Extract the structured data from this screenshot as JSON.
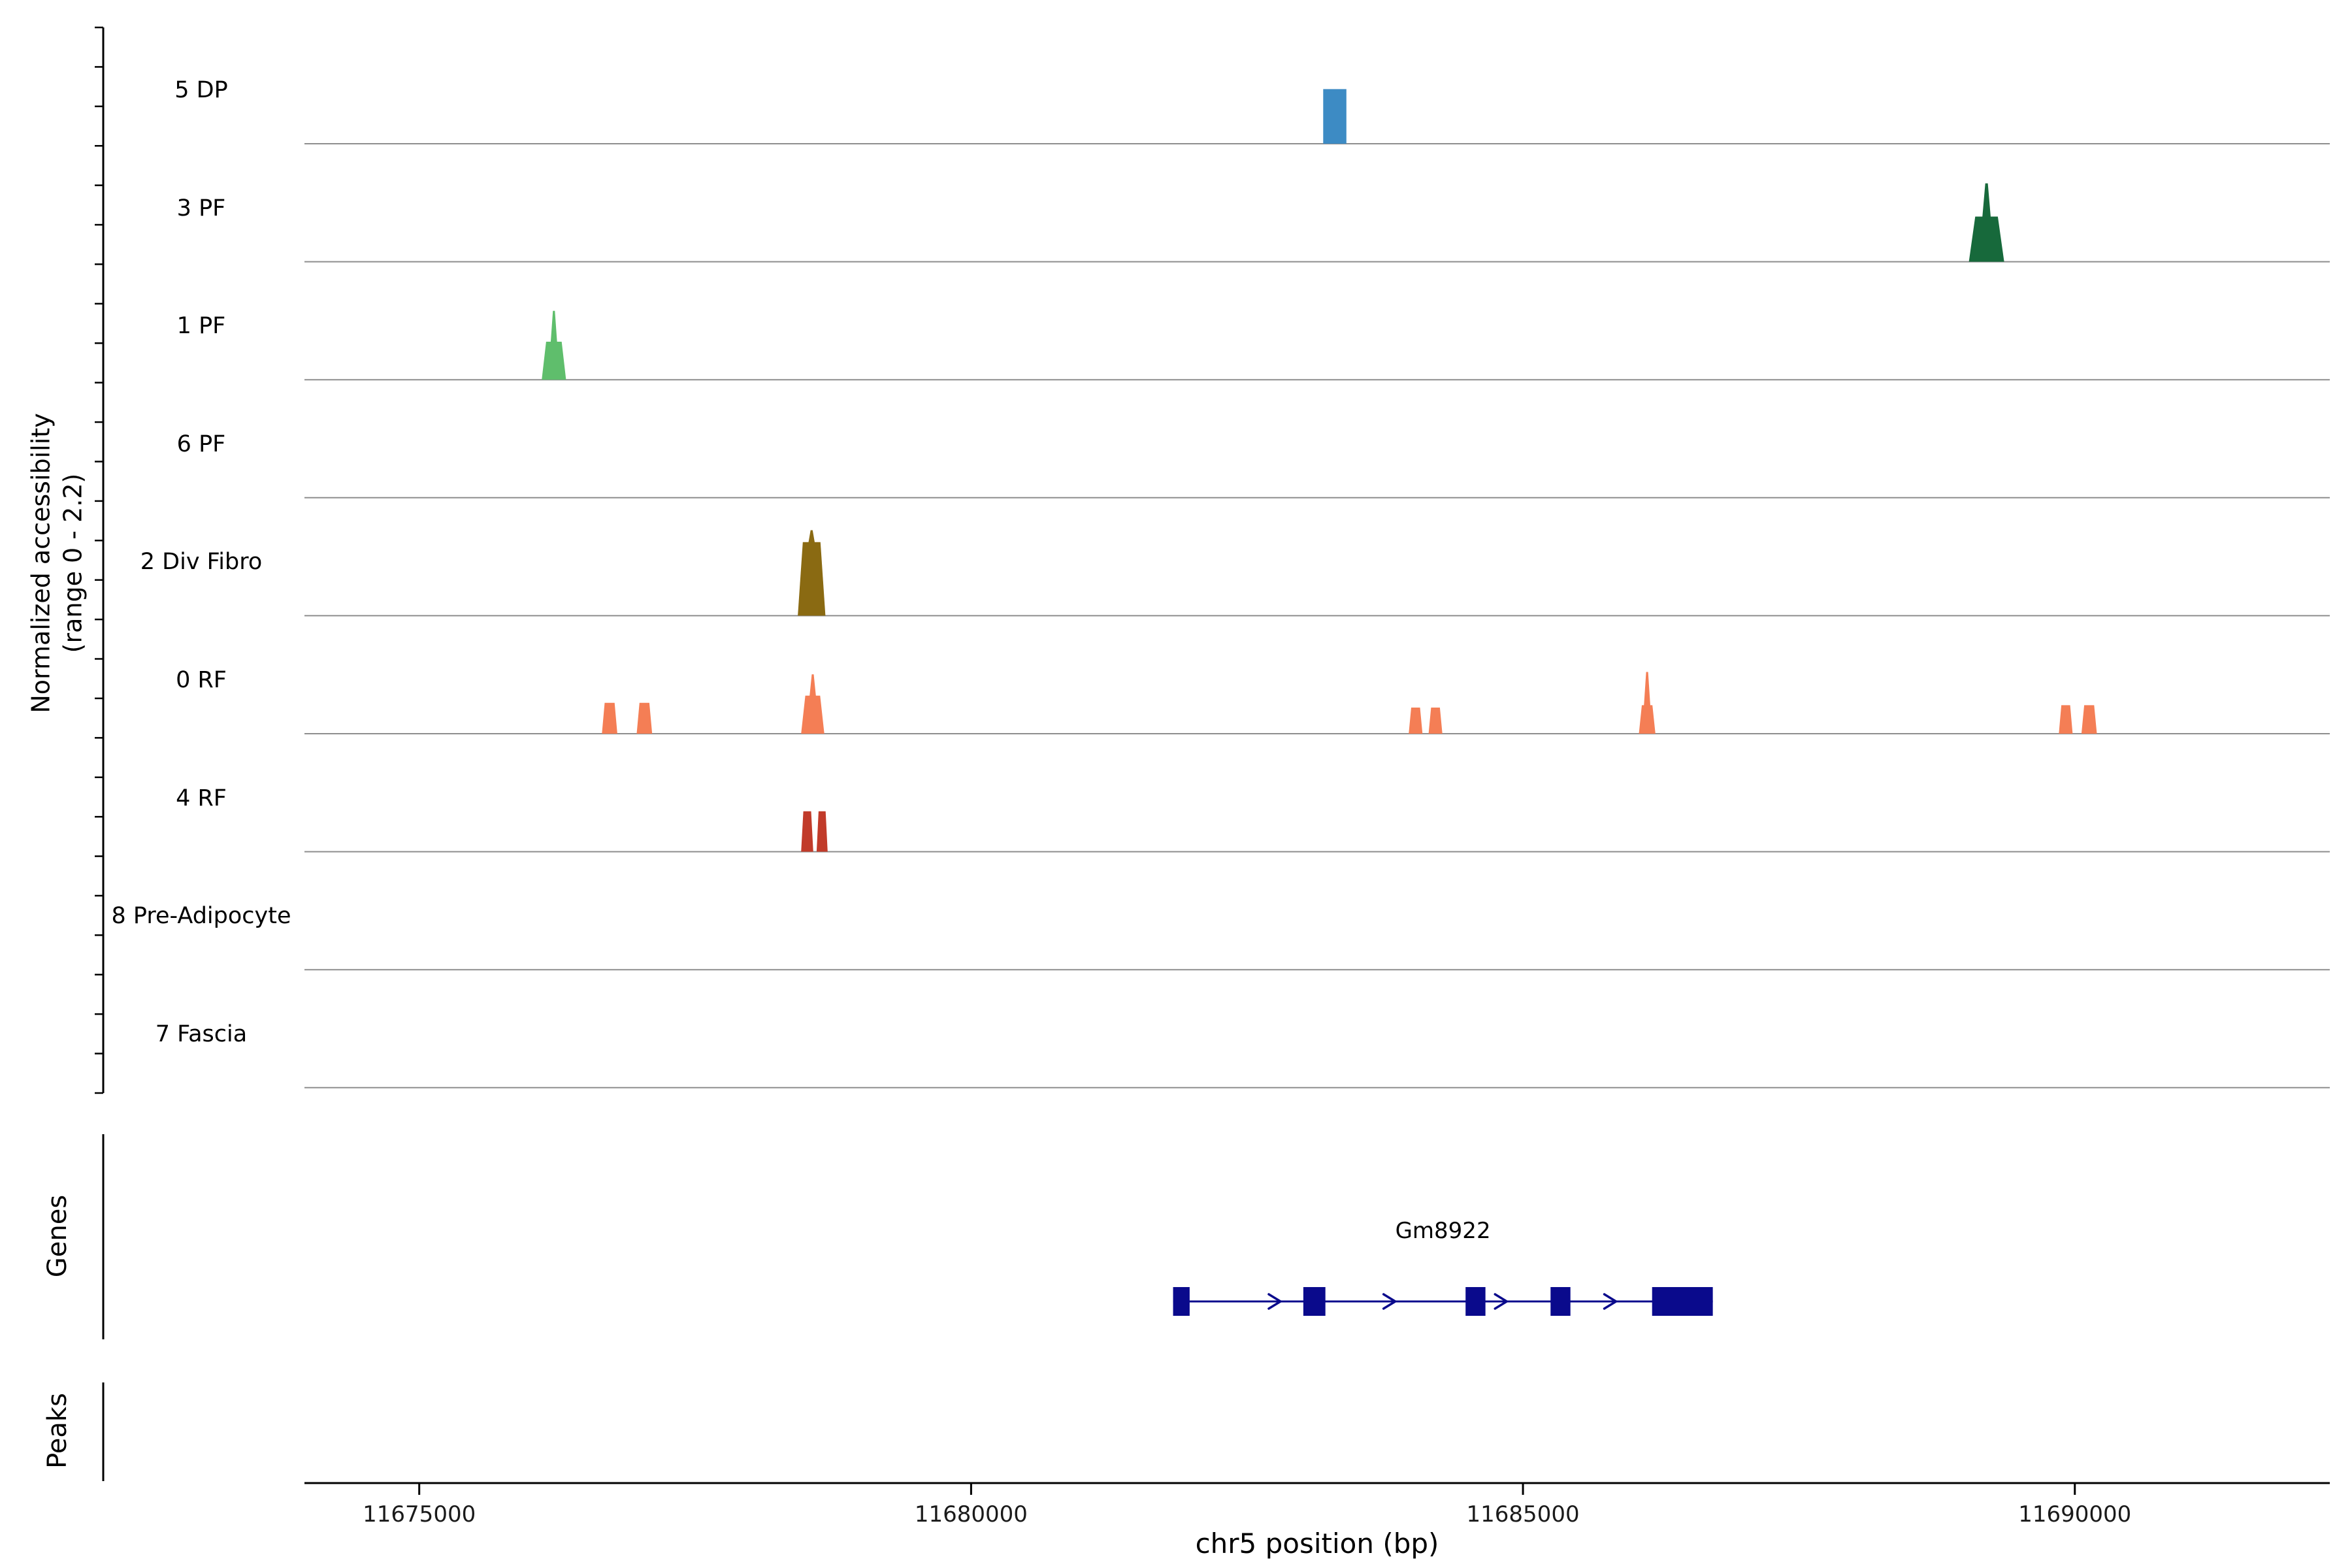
{
  "figure": {
    "ylabel_line1": "Normalized accessibility",
    "ylabel_line2": "(range 0 - 2.2)",
    "xlabel": "chr5 position (bp)",
    "genes_section_label": "Genes",
    "peaks_section_label": "Peaks"
  },
  "chart_data": {
    "type": "area",
    "title": "",
    "x_axis": {
      "label": "chr5 position (bp)",
      "range_bp": [
        11673960,
        11692310
      ],
      "ticks": [
        11675000,
        11680000,
        11685000,
        11690000
      ]
    },
    "y_axis": {
      "label": "Normalized accessibility (range 0 - 2.2)",
      "per_track_range": [
        0,
        2.2
      ]
    },
    "tracks": [
      {
        "label": "5 DP",
        "color": "#3D8BC4",
        "peaks": [
          {
            "start": 11683190,
            "end": 11683400,
            "height": 1.15,
            "shape": "block"
          }
        ]
      },
      {
        "label": "3 PF",
        "color": "#17693B",
        "peaks": [
          {
            "start": 11689040,
            "end": 11689360,
            "height": 0.95,
            "spike": 1.65
          }
        ]
      },
      {
        "label": "1 PF",
        "color": "#5FBE6C",
        "peaks": [
          {
            "start": 11676110,
            "end": 11676330,
            "height": 0.8,
            "spike": 1.45
          }
        ]
      },
      {
        "label": "6 PF",
        "peaks": []
      },
      {
        "label": "2 Div Fibro",
        "color": "#8A6A12",
        "peaks": [
          {
            "start": 11678430,
            "end": 11678680,
            "height": 1.55,
            "spike": 1.8
          }
        ]
      },
      {
        "label": "0 RF",
        "color": "#F47E55",
        "peaks": [
          {
            "start": 11676655,
            "end": 11676795,
            "height": 0.65
          },
          {
            "start": 11676970,
            "end": 11677110,
            "height": 0.65
          },
          {
            "start": 11678460,
            "end": 11678670,
            "height": 0.8,
            "spike": 1.25
          },
          {
            "start": 11683965,
            "end": 11684090,
            "height": 0.55
          },
          {
            "start": 11684145,
            "end": 11684270,
            "height": 0.55
          },
          {
            "start": 11686050,
            "end": 11686200,
            "height": 0.6,
            "spike": 1.3
          },
          {
            "start": 11689855,
            "end": 11689980,
            "height": 0.6
          },
          {
            "start": 11690060,
            "end": 11690200,
            "height": 0.6
          }
        ]
      },
      {
        "label": "4 RF",
        "color": "#C13B2A",
        "peaks": [
          {
            "start": 11678460,
            "end": 11678570,
            "height": 0.85
          },
          {
            "start": 11678600,
            "end": 11678700,
            "height": 0.85
          }
        ]
      },
      {
        "label": "8 Pre-Adipocyte",
        "peaks": []
      },
      {
        "label": "7 Fascia",
        "peaks": []
      }
    ],
    "gene_track": {
      "label": "Genes",
      "gene": {
        "name": "Gm8922",
        "color": "#0A0A8C",
        "start": 11681830,
        "end": 11686720,
        "strand": "+",
        "exons": [
          [
            11681830,
            11681980
          ],
          [
            11683010,
            11683210
          ],
          [
            11684480,
            11684660
          ],
          [
            11685250,
            11685430
          ],
          [
            11686170,
            11686720
          ]
        ],
        "arrow_positions": [
          11682750,
          11683790,
          11684800,
          11685790
        ]
      }
    },
    "peak_track": {
      "label": "Peaks",
      "peaks": []
    }
  }
}
